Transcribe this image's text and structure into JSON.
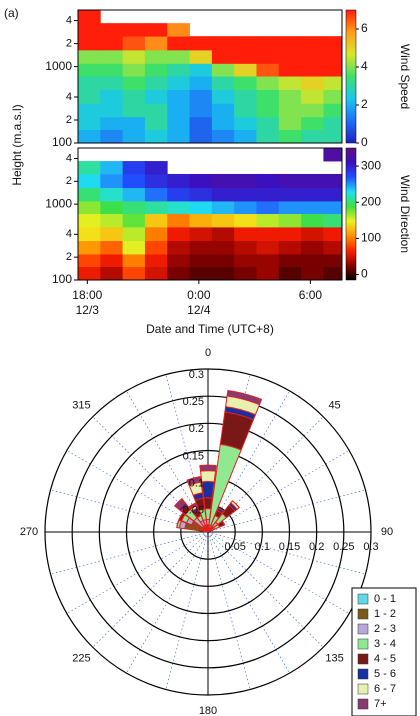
{
  "chart_data": [
    {
      "type": "heatmap",
      "panel_label": "(a)",
      "ylabel": "Height (m.a.s.l)",
      "colorbar_label": "Wind Speed",
      "xlim": [
        17.5,
        31.7
      ],
      "ylim": [
        100,
        5500
      ],
      "log_y": true,
      "yticks": [
        100,
        {
          "value": 200,
          "label": "2"
        },
        {
          "value": 400,
          "label": "4"
        },
        1000,
        {
          "value": 2000,
          "label": "2"
        },
        {
          "value": 4000,
          "label": "4"
        }
      ],
      "xbins": [
        17.5,
        18.7,
        19.9,
        21.1,
        22.3,
        23.5,
        24.7,
        25.9,
        27.1,
        28.3,
        29.5,
        30.7,
        31.7
      ],
      "ybins": [
        100,
        150,
        220,
        330,
        500,
        750,
        1100,
        1650,
        2500,
        3700,
        5500
      ],
      "values": [
        [
          2,
          1.5,
          2,
          2.5,
          2,
          1,
          1.5,
          2,
          3,
          3.5,
          3,
          3
        ],
        [
          2.5,
          2,
          2,
          3,
          2,
          1,
          2,
          2.5,
          3,
          4,
          3.5,
          3
        ],
        [
          2.5,
          2.5,
          3,
          3,
          2,
          1.5,
          2,
          3,
          3.5,
          4,
          4,
          3.5
        ],
        [
          3,
          2.5,
          3,
          2.5,
          2,
          1.5,
          2.5,
          3,
          3.5,
          4,
          4.5,
          4
        ],
        [
          3,
          3,
          3.5,
          3,
          2.5,
          2,
          3,
          3.5,
          4,
          4.5,
          5,
          4.5
        ],
        [
          3.5,
          3.5,
          4,
          3.5,
          3,
          2.5,
          4,
          5,
          6.5,
          7,
          7,
          7
        ],
        [
          4,
          4,
          4.5,
          4,
          4,
          5,
          7,
          7,
          7,
          7,
          7,
          7
        ],
        [
          7,
          7,
          6.5,
          6,
          7,
          7,
          7,
          7,
          7,
          7,
          7,
          7
        ],
        [
          7,
          7,
          7,
          7,
          6,
          null,
          null,
          null,
          null,
          null,
          null,
          null
        ],
        [
          7,
          null,
          null,
          null,
          null,
          null,
          null,
          null,
          null,
          null,
          null,
          null
        ]
      ],
      "zlim": [
        0,
        7
      ],
      "zticks": [
        0,
        2,
        4,
        6
      ],
      "colorscale": [
        "#2020c0",
        "#1e6ff5",
        "#19c8f0",
        "#3ee06a",
        "#d8e62a",
        "#ff9d1a",
        "#ff1e0a"
      ]
    },
    {
      "type": "heatmap",
      "colorbar_label": "Wind Direction",
      "xlim": [
        17.5,
        31.7
      ],
      "ylim": [
        100,
        5500
      ],
      "log_y": true,
      "yticks": [
        100,
        {
          "value": 200,
          "label": "2"
        },
        {
          "value": 400,
          "label": "4"
        },
        1000,
        {
          "value": 2000,
          "label": "2"
        },
        {
          "value": 4000,
          "label": "4"
        }
      ],
      "xticks": [
        {
          "value": 18,
          "label": "18:00",
          "sublabel": "12/3"
        },
        {
          "value": 24,
          "label": "0:00",
          "sublabel": "12/4"
        },
        {
          "value": 30,
          "label": "6:00"
        }
      ],
      "xlabel": "Date and Time (UTC+8)",
      "xbins": [
        17.5,
        18.7,
        19.9,
        21.1,
        22.3,
        23.5,
        24.7,
        25.9,
        27.1,
        28.3,
        29.5,
        30.7,
        31.7
      ],
      "ybins": [
        100,
        150,
        220,
        330,
        500,
        750,
        1100,
        1650,
        2500,
        3700,
        5500
      ],
      "values": [
        [
          60,
          40,
          80,
          50,
          20,
          10,
          10,
          20,
          30,
          10,
          20,
          10
        ],
        [
          80,
          60,
          100,
          60,
          30,
          20,
          20,
          30,
          30,
          20,
          20,
          20
        ],
        [
          110,
          90,
          150,
          80,
          40,
          30,
          30,
          40,
          50,
          40,
          30,
          40
        ],
        [
          140,
          130,
          160,
          100,
          60,
          50,
          40,
          60,
          60,
          60,
          50,
          60
        ],
        [
          150,
          160,
          180,
          130,
          100,
          120,
          130,
          140,
          160,
          170,
          190,
          200
        ],
        [
          170,
          190,
          200,
          210,
          220,
          230,
          240,
          250,
          260,
          250,
          250,
          250
        ],
        [
          200,
          220,
          240,
          260,
          280,
          290,
          300,
          300,
          300,
          300,
          300,
          300
        ],
        [
          230,
          250,
          270,
          290,
          300,
          310,
          320,
          320,
          310,
          320,
          320,
          320
        ],
        [
          210,
          240,
          280,
          300,
          null,
          null,
          null,
          null,
          null,
          null,
          null,
          null
        ],
        [
          null,
          null,
          null,
          null,
          null,
          null,
          null,
          null,
          null,
          null,
          null,
          330
        ]
      ],
      "zlim": [
        -15,
        350
      ],
      "zticks": [
        0,
        100,
        200,
        300
      ],
      "colorscale": [
        "#000000",
        "#8b0000",
        "#ff2000",
        "#ff9000",
        "#f0f020",
        "#40e040",
        "#20e0f0",
        "#2050ff",
        "#3a10c0",
        "#601080"
      ]
    },
    {
      "type": "windrose",
      "x": [
        285,
        300,
        315,
        330,
        345,
        0,
        15,
        30,
        45,
        60
      ],
      "rlim": [
        0,
        0.3
      ],
      "rticks": [
        0.05,
        0.1,
        0.15,
        0.2,
        0.25,
        0.3
      ],
      "thetaticks": [
        0,
        45,
        90,
        135,
        180,
        225,
        270,
        315
      ],
      "legend": "lower right",
      "outline_color": "#e02020",
      "series": [
        {
          "name": "0 - 1",
          "color": "#5fd8e8",
          "values": [
            0.003,
            0.003,
            0.003,
            0.003,
            0.003,
            0.003,
            0.003,
            0.003,
            0.003,
            0.003
          ]
        },
        {
          "name": "1 - 2",
          "color": "#7a5a18",
          "values": [
            0.04,
            0.03,
            0.01,
            0.01,
            0.01,
            0.01,
            0.005,
            0.005,
            0.01,
            0.005
          ]
        },
        {
          "name": "2 - 3",
          "color": "#b8a8d8",
          "values": [
            0.01,
            0.01,
            0.02,
            0.01,
            0.01,
            0.01,
            0.005,
            0.005,
            0.01,
            0.005
          ]
        },
        {
          "name": "3 - 4",
          "color": "#90e890",
          "values": [
            0.005,
            0.01,
            0.02,
            0.01,
            0.02,
            0.02,
            0.15,
            0.02,
            0.02,
            0.01
          ]
        },
        {
          "name": "4 - 5",
          "color": "#7a1818",
          "values": [
            0,
            0.005,
            0.01,
            0.01,
            0.02,
            0.02,
            0.06,
            0.01,
            0.02,
            0.01
          ]
        },
        {
          "name": "5 - 6",
          "color": "#1830a0",
          "values": [
            0,
            0,
            0.005,
            0.005,
            0.01,
            0.03,
            0.01,
            0.005,
            0.005,
            0
          ]
        },
        {
          "name": "6 - 7",
          "color": "#e8f0b0",
          "values": [
            0,
            0,
            0,
            0.005,
            0.02,
            0.02,
            0.02,
            0,
            0.005,
            0
          ]
        },
        {
          "name": "7+",
          "color": "#8a3a70",
          "values": [
            0,
            0,
            0.01,
            0.005,
            0.01,
            0.01,
            0.01,
            0,
            0,
            0
          ]
        }
      ]
    }
  ]
}
